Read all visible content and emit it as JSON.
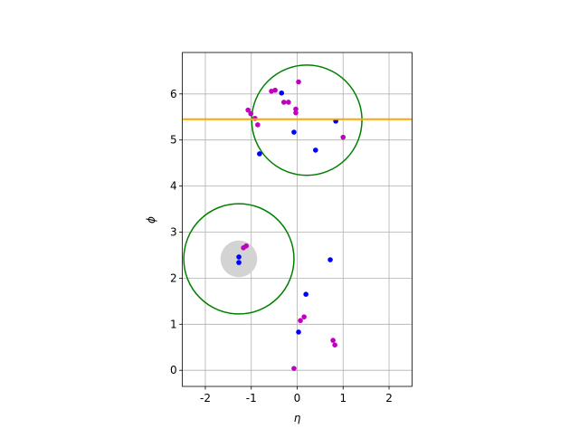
{
  "chart_data": {
    "type": "scatter",
    "xlabel": "η",
    "ylabel": "ϕ",
    "xlim": [
      -2.5,
      2.5
    ],
    "ylim": [
      -0.35,
      6.9
    ],
    "xticks": [
      -2,
      -1,
      0,
      1,
      2
    ],
    "yticks": [
      0,
      1,
      2,
      3,
      4,
      5,
      6
    ],
    "grid": true,
    "series": [
      {
        "color": "#bf00bf",
        "x": [
          0.03,
          -0.56,
          -0.48,
          -0.29,
          -0.19,
          -0.03,
          -0.03,
          -1.07,
          -1.01,
          -0.92,
          -0.86,
          1.0,
          -1.11,
          -1.17,
          0.15,
          0.07,
          0.78,
          0.82,
          -0.07
        ],
        "values": [
          6.26,
          6.06,
          6.08,
          5.82,
          5.82,
          5.67,
          5.59,
          5.65,
          5.57,
          5.47,
          5.33,
          5.06,
          2.7,
          2.66,
          1.16,
          1.08,
          0.65,
          0.55,
          0.04
        ]
      },
      {
        "color": "#0000ff",
        "x": [
          -0.34,
          0.84,
          -0.07,
          0.4,
          -0.82,
          -1.27,
          -1.27,
          0.72,
          0.19,
          0.03
        ],
        "values": [
          6.02,
          5.41,
          5.17,
          4.78,
          4.7,
          2.46,
          2.34,
          2.4,
          1.65,
          0.83
        ]
      }
    ],
    "circles": [
      {
        "x": -1.27,
        "y": 2.42,
        "r": 0.4,
        "fill": "#d3d3d3",
        "stroke": "none"
      },
      {
        "x": 0.21,
        "y": 5.43,
        "r": 1.2,
        "fill": "none",
        "stroke": "#008000"
      },
      {
        "x": -1.27,
        "y": 2.42,
        "r": 1.2,
        "fill": "none",
        "stroke": "#008000"
      }
    ],
    "hline": {
      "y": 5.45,
      "color": "#ffa500"
    }
  }
}
